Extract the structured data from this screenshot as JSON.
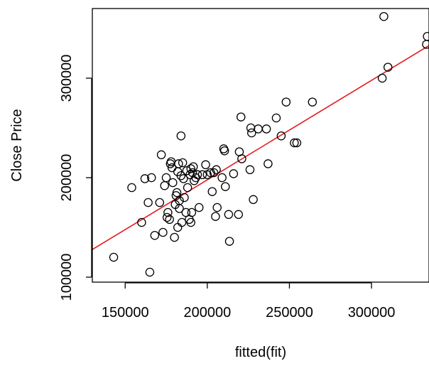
{
  "chart_data": {
    "type": "scatter",
    "title": "",
    "xlabel": "fitted(fit)",
    "ylabel": "Close Price",
    "xlim": [
      130000,
      335000
    ],
    "ylim": [
      95000,
      370000
    ],
    "xticks": [
      150000,
      200000,
      250000,
      300000
    ],
    "yticks": [
      100000,
      200000,
      300000
    ],
    "grid": false,
    "colors": {
      "points": "#000000",
      "fit_line": "#e41a1c",
      "axes": "#000000"
    },
    "series": [
      {
        "type": "scatter",
        "marker": "open-circle",
        "points": [
          [
            143000,
            120000
          ],
          [
            154000,
            190000
          ],
          [
            160000,
            155000
          ],
          [
            162000,
            199000
          ],
          [
            164000,
            175000
          ],
          [
            165000,
            105000
          ],
          [
            166000,
            200000
          ],
          [
            168000,
            142000
          ],
          [
            171000,
            175000
          ],
          [
            172000,
            223000
          ],
          [
            173000,
            145000
          ],
          [
            174000,
            192000
          ],
          [
            175000,
            200000
          ],
          [
            175500,
            160000
          ],
          [
            176000,
            165000
          ],
          [
            177000,
            158000
          ],
          [
            177500,
            214000
          ],
          [
            178000,
            216000
          ],
          [
            178500,
            210000
          ],
          [
            179000,
            195000
          ],
          [
            180000,
            140000
          ],
          [
            180500,
            173000
          ],
          [
            181000,
            182000
          ],
          [
            181500,
            185000
          ],
          [
            182000,
            150000
          ],
          [
            182000,
            206000
          ],
          [
            182500,
            214000
          ],
          [
            183000,
            169000
          ],
          [
            183000,
            177000
          ],
          [
            184000,
            242000
          ],
          [
            184000,
            202000
          ],
          [
            184500,
            155000
          ],
          [
            185000,
            215000
          ],
          [
            185500,
            199000
          ],
          [
            186000,
            180000
          ],
          [
            187000,
            165000
          ],
          [
            187500,
            207000
          ],
          [
            188000,
            190000
          ],
          [
            189000,
            158000
          ],
          [
            189500,
            203000
          ],
          [
            190000,
            155000
          ],
          [
            190000,
            209000
          ],
          [
            190500,
            165000
          ],
          [
            191000,
            205000
          ],
          [
            191500,
            211000
          ],
          [
            192000,
            197000
          ],
          [
            193000,
            200000
          ],
          [
            194000,
            203000
          ],
          [
            195000,
            170000
          ],
          [
            197000,
            203000
          ],
          [
            199000,
            213000
          ],
          [
            200000,
            203000
          ],
          [
            202000,
            205000
          ],
          [
            203000,
            186000
          ],
          [
            204000,
            205000
          ],
          [
            205000,
            161000
          ],
          [
            205500,
            208000
          ],
          [
            206000,
            170000
          ],
          [
            209000,
            200000
          ],
          [
            210000,
            229000
          ],
          [
            210500,
            227000
          ],
          [
            211000,
            191000
          ],
          [
            213000,
            163000
          ],
          [
            213500,
            136000
          ],
          [
            216000,
            204000
          ],
          [
            219000,
            163000
          ],
          [
            219500,
            226000
          ],
          [
            220500,
            261000
          ],
          [
            221000,
            219000
          ],
          [
            226000,
            208000
          ],
          [
            226500,
            250000
          ],
          [
            227000,
            245000
          ],
          [
            228000,
            178000
          ],
          [
            231000,
            249000
          ],
          [
            236000,
            249000
          ],
          [
            237000,
            214000
          ],
          [
            242000,
            260000
          ],
          [
            245000,
            242000
          ],
          [
            248000,
            276000
          ],
          [
            253000,
            235000
          ],
          [
            254500,
            235000
          ],
          [
            264000,
            276000
          ],
          [
            306500,
            300000
          ],
          [
            307500,
            362000
          ],
          [
            310000,
            311000
          ],
          [
            333500,
            334000
          ],
          [
            334000,
            342000
          ]
        ]
      },
      {
        "type": "line",
        "role": "regression-fit",
        "intercept": -2200,
        "slope": 1.0
      }
    ]
  }
}
